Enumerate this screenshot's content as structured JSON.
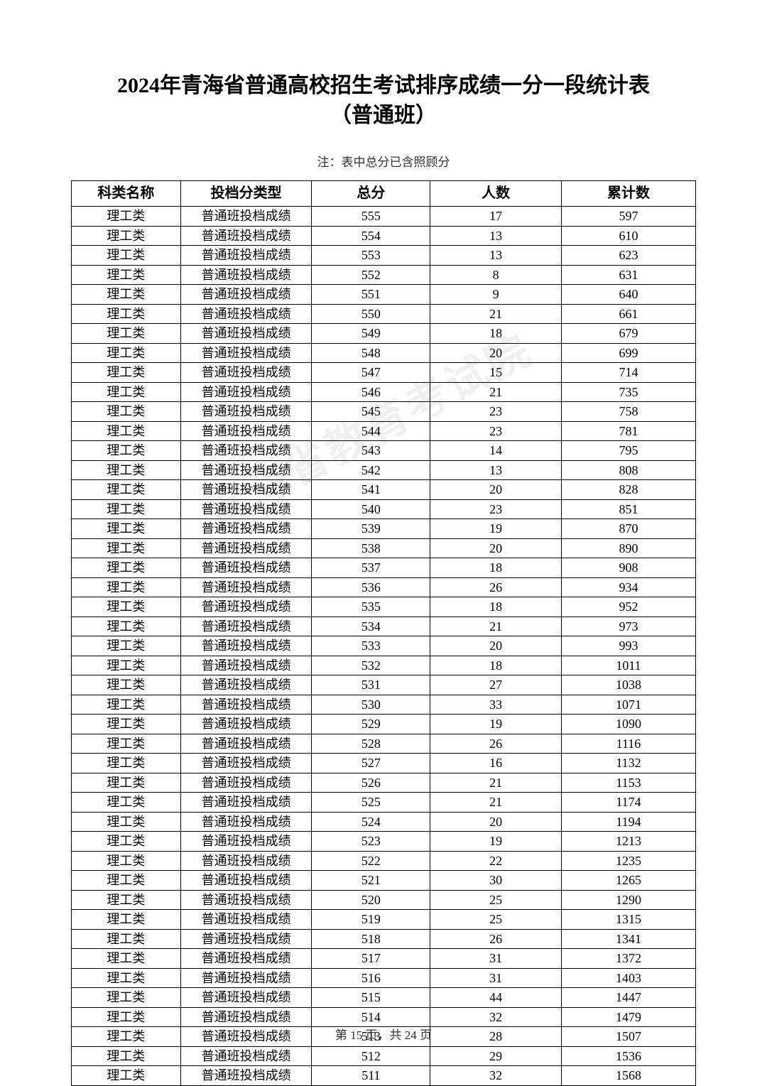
{
  "title_line1": "2024年青海省普通高校招生考试排序成绩一分一段统计表",
  "title_line2": "（普通班）",
  "note": "注：表中总分已含照顾分",
  "watermark": "青海省教育考试院",
  "footer": "第 15 页，共 24 页",
  "table": {
    "headers": [
      "科类名称",
      "投档分类型",
      "总分",
      "人数",
      "累计数"
    ],
    "category": "理工类",
    "type": "普通班投档成绩",
    "rows": [
      {
        "score": 555,
        "count": 17,
        "cum": 597
      },
      {
        "score": 554,
        "count": 13,
        "cum": 610
      },
      {
        "score": 553,
        "count": 13,
        "cum": 623
      },
      {
        "score": 552,
        "count": 8,
        "cum": 631
      },
      {
        "score": 551,
        "count": 9,
        "cum": 640
      },
      {
        "score": 550,
        "count": 21,
        "cum": 661
      },
      {
        "score": 549,
        "count": 18,
        "cum": 679
      },
      {
        "score": 548,
        "count": 20,
        "cum": 699
      },
      {
        "score": 547,
        "count": 15,
        "cum": 714
      },
      {
        "score": 546,
        "count": 21,
        "cum": 735
      },
      {
        "score": 545,
        "count": 23,
        "cum": 758
      },
      {
        "score": 544,
        "count": 23,
        "cum": 781
      },
      {
        "score": 543,
        "count": 14,
        "cum": 795
      },
      {
        "score": 542,
        "count": 13,
        "cum": 808
      },
      {
        "score": 541,
        "count": 20,
        "cum": 828
      },
      {
        "score": 540,
        "count": 23,
        "cum": 851
      },
      {
        "score": 539,
        "count": 19,
        "cum": 870
      },
      {
        "score": 538,
        "count": 20,
        "cum": 890
      },
      {
        "score": 537,
        "count": 18,
        "cum": 908
      },
      {
        "score": 536,
        "count": 26,
        "cum": 934
      },
      {
        "score": 535,
        "count": 18,
        "cum": 952
      },
      {
        "score": 534,
        "count": 21,
        "cum": 973
      },
      {
        "score": 533,
        "count": 20,
        "cum": 993
      },
      {
        "score": 532,
        "count": 18,
        "cum": 1011
      },
      {
        "score": 531,
        "count": 27,
        "cum": 1038
      },
      {
        "score": 530,
        "count": 33,
        "cum": 1071
      },
      {
        "score": 529,
        "count": 19,
        "cum": 1090
      },
      {
        "score": 528,
        "count": 26,
        "cum": 1116
      },
      {
        "score": 527,
        "count": 16,
        "cum": 1132
      },
      {
        "score": 526,
        "count": 21,
        "cum": 1153
      },
      {
        "score": 525,
        "count": 21,
        "cum": 1174
      },
      {
        "score": 524,
        "count": 20,
        "cum": 1194
      },
      {
        "score": 523,
        "count": 19,
        "cum": 1213
      },
      {
        "score": 522,
        "count": 22,
        "cum": 1235
      },
      {
        "score": 521,
        "count": 30,
        "cum": 1265
      },
      {
        "score": 520,
        "count": 25,
        "cum": 1290
      },
      {
        "score": 519,
        "count": 25,
        "cum": 1315
      },
      {
        "score": 518,
        "count": 26,
        "cum": 1341
      },
      {
        "score": 517,
        "count": 31,
        "cum": 1372
      },
      {
        "score": 516,
        "count": 31,
        "cum": 1403
      },
      {
        "score": 515,
        "count": 44,
        "cum": 1447
      },
      {
        "score": 514,
        "count": 32,
        "cum": 1479
      },
      {
        "score": 513,
        "count": 28,
        "cum": 1507
      },
      {
        "score": 512,
        "count": 29,
        "cum": 1536
      },
      {
        "score": 511,
        "count": 32,
        "cum": 1568
      }
    ]
  },
  "style": {
    "background_color": "#ffffff",
    "text_color": "#000000",
    "border_color": "#000000",
    "watermark_color": "rgba(0,0,0,0.06)",
    "title_fontsize": 30,
    "header_fontsize": 20,
    "cell_fontsize": 18,
    "note_fontsize": 17,
    "footer_fontsize": 17
  }
}
